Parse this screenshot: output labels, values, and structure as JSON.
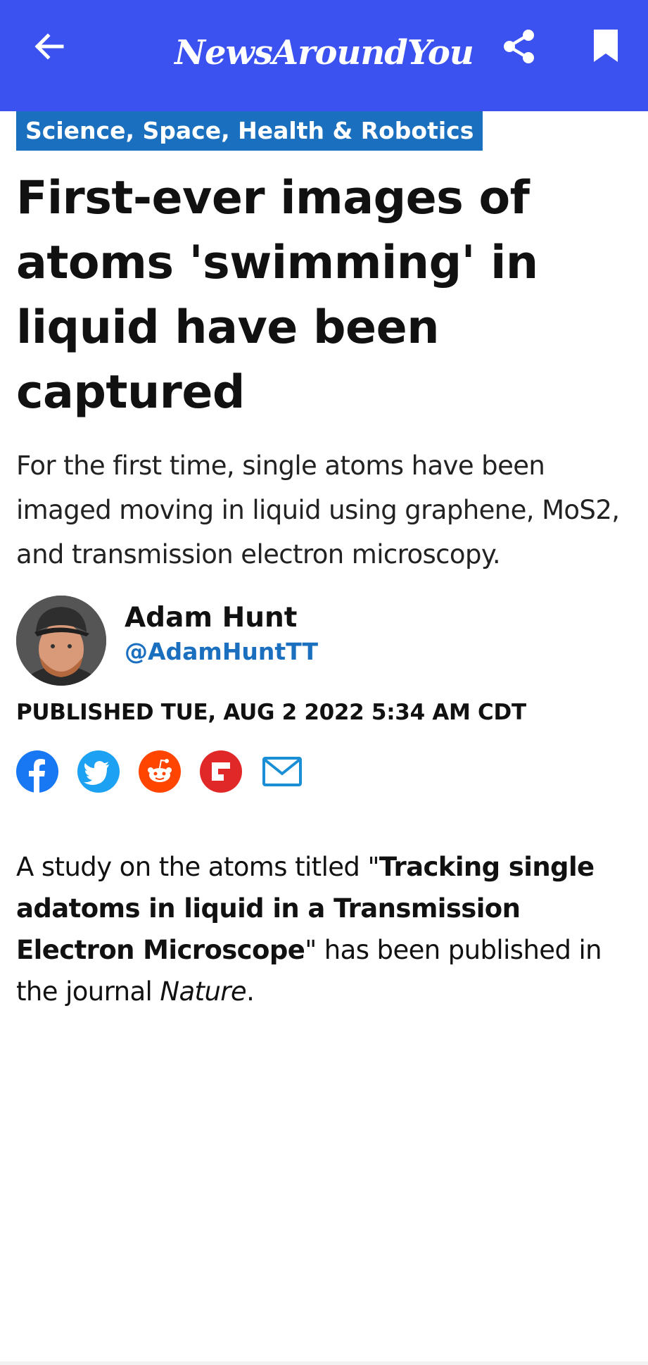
{
  "app": {
    "brand": "NewsAroundYou",
    "bar_color": "#3b52f0"
  },
  "icons": {
    "back": "back-arrow-icon",
    "share": "share-icon",
    "bookmark": "bookmark-icon",
    "social": [
      "facebook-icon",
      "twitter-icon",
      "reddit-icon",
      "flipboard-icon",
      "email-icon"
    ]
  },
  "article": {
    "category": "Science, Space, Health & Robotics",
    "headline": "First-ever images of atoms 'swimming' in liquid have been captured",
    "subhead": "For the first time, single atoms have been imaged moving in liquid using graphene, MoS2, and transmission electron microscopy.",
    "author": {
      "name": "Adam Hunt",
      "handle": "@AdamHuntTT"
    },
    "published": "PUBLISHED TUE, AUG 2 2022 5:34 AM CDT",
    "body": {
      "intro": "A study on the atoms titled \"",
      "study_title": "Tracking single adatoms in liquid in a Transmission Electron Microscope",
      "middle": "\" has been published in the journal ",
      "journal": "Nature",
      "end": "."
    }
  },
  "colors": {
    "category_bg": "#1b6fbf",
    "handle": "#1b6fbf",
    "facebook": "#1877f2",
    "twitter": "#1da1f2",
    "reddit": "#ff4500",
    "flipboard": "#e12828",
    "email": "#1b8fd6"
  }
}
